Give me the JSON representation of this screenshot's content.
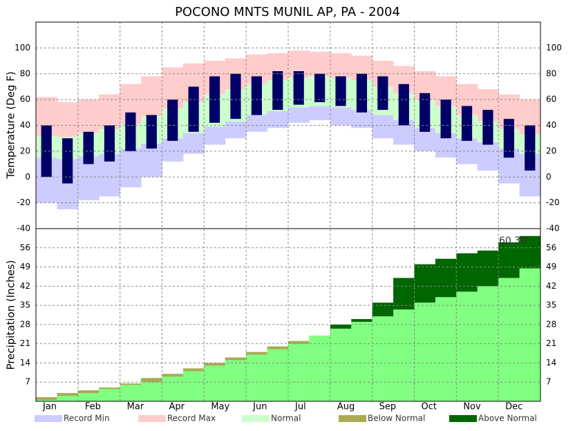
{
  "chart_data": [
    {
      "type": "temperature",
      "title": "POCONO MNTS MUNIL AP, PA - 2004",
      "y_label": "Temperature (Deg F)",
      "ylim": [
        -40,
        120
      ],
      "yticks": [
        -40,
        -20,
        0,
        20,
        40,
        60,
        80,
        100
      ],
      "grid": true,
      "series": [
        {
          "name": "Record Min",
          "color": "#ccccff",
          "values": [
            -20,
            -25,
            -18,
            -15,
            -8,
            0,
            12,
            18,
            25,
            30,
            35,
            38,
            42,
            44,
            40,
            38,
            30,
            25,
            20,
            15,
            10,
            5,
            -5,
            -15
          ]
        },
        {
          "name": "Record Max",
          "color": "#ffcccc",
          "values": [
            62,
            58,
            60,
            64,
            72,
            78,
            85,
            88,
            90,
            92,
            95,
            96,
            98,
            97,
            96,
            94,
            90,
            86,
            82,
            78,
            72,
            68,
            64,
            60
          ]
        },
        {
          "name": "Normal",
          "color": "#ccffcc",
          "values": [
            32,
            31,
            34,
            37,
            41,
            47,
            53,
            58,
            64,
            68,
            72,
            75,
            77,
            78,
            77,
            75,
            70,
            65,
            60,
            55,
            48,
            43,
            37,
            33
          ],
          "lows": [
            15,
            14,
            16,
            18,
            22,
            26,
            30,
            34,
            39,
            43,
            48,
            51,
            54,
            55,
            54,
            52,
            48,
            44,
            38,
            34,
            30,
            27,
            22,
            18
          ]
        }
      ],
      "observed": {
        "color": "#000066",
        "highs": [
          40,
          30,
          35,
          40,
          50,
          48,
          60,
          70,
          78,
          80,
          78,
          82,
          82,
          80,
          78,
          80,
          78,
          72,
          65,
          60,
          55,
          52,
          45,
          40
        ],
        "lows": [
          0,
          -5,
          10,
          12,
          20,
          22,
          28,
          35,
          42,
          45,
          48,
          52,
          56,
          58,
          55,
          50,
          52,
          40,
          35,
          30,
          28,
          25,
          15,
          5
        ]
      }
    },
    {
      "type": "cumulative",
      "y_label": "Precipitation (Inches)",
      "annotation": "60.30",
      "ylim": [
        0,
        63
      ],
      "yticks": [
        7,
        14,
        21,
        28,
        35,
        42,
        49,
        56
      ],
      "grid": true,
      "categories": [
        "Jan",
        null,
        "Feb",
        null,
        "Mar",
        null,
        "Apr",
        null,
        "May",
        null,
        "Jun",
        null,
        "Jul",
        null,
        "Aug",
        null,
        "Sep",
        null,
        "Oct",
        null,
        "Nov",
        null,
        "Dec",
        null
      ],
      "normal": {
        "color": "#80ff80",
        "values": [
          1.5,
          3,
          4,
          5,
          6.5,
          8.5,
          10,
          12,
          14,
          16,
          18,
          20,
          22,
          24,
          26.5,
          29,
          31,
          33.5,
          36,
          38,
          40,
          42,
          45,
          48.5
        ]
      },
      "observed": [
        0.5,
        2,
        3,
        4.5,
        6,
        7,
        9,
        11,
        13,
        15,
        17,
        19,
        21,
        24,
        28,
        30,
        36,
        45,
        50,
        52,
        54,
        55,
        58,
        60.3
      ],
      "series": [
        {
          "name": "Below Normal",
          "color": "#aaaa55"
        },
        {
          "name": "Above Normal",
          "color": "#006600"
        }
      ]
    }
  ]
}
